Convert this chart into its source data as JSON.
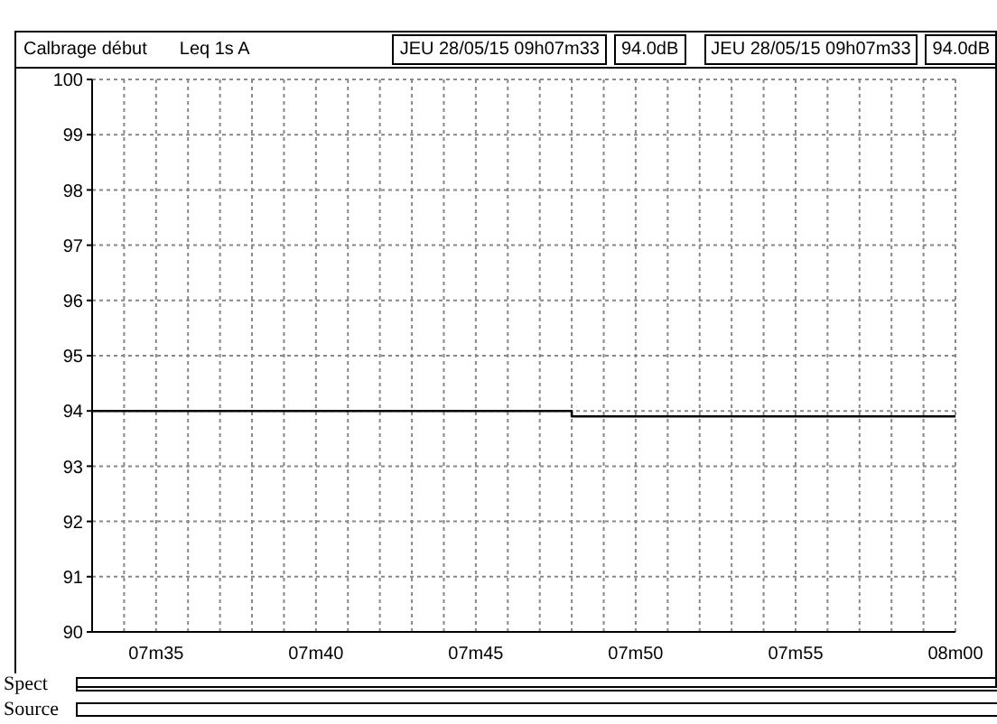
{
  "chart_data": {
    "type": "step",
    "title": "Calbrage début",
    "subtitle": "Leq 1s  A",
    "annotations": [
      "JEU 28/05/15 09h07m33",
      "94.0dB",
      "JEU 28/05/15 09h07m33",
      "94.0dB",
      "Spect",
      "Source"
    ],
    "categories": [
      null,
      null,
      "07m35",
      null,
      null,
      null,
      null,
      "07m40",
      null,
      null,
      null,
      null,
      "07m45",
      null,
      null,
      null,
      null,
      "07m50",
      null,
      null,
      null,
      null,
      "07m55",
      null,
      null,
      null,
      null,
      "08m00"
    ],
    "series": [
      {
        "color": "#000000",
        "values": [
          94.0,
          94.0,
          94.0,
          94.0,
          94.0,
          94.0,
          94.0,
          94.0,
          94.0,
          94.0,
          94.0,
          94.0,
          94.0,
          94.0,
          94.0,
          93.9,
          93.9,
          93.9,
          93.9,
          93.9,
          93.9,
          93.9,
          93.9,
          93.9,
          93.9,
          93.9,
          93.9,
          93.9
        ]
      }
    ],
    "ylim": [
      90,
      100
    ],
    "yticks": [
      90,
      91,
      92,
      93,
      94,
      95,
      96,
      97,
      98,
      99,
      100
    ],
    "grid": true
  }
}
